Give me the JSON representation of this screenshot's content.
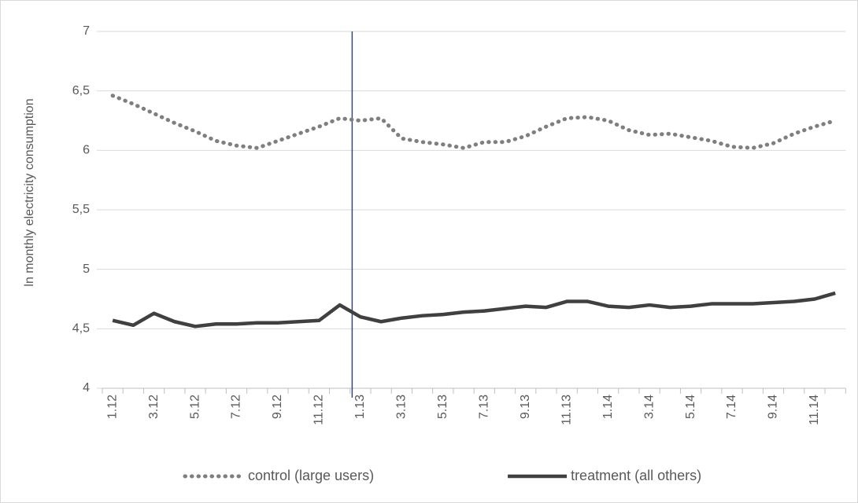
{
  "chart_data": {
    "type": "line",
    "y_label": "ln monthly electricity consumption",
    "categories": [
      "1.12",
      null,
      "3.12",
      null,
      "5.12",
      null,
      "7.12",
      null,
      "9.12",
      null,
      "11.12",
      null,
      "1.13",
      null,
      "3.13",
      null,
      "5.13",
      null,
      "7.13",
      null,
      "9.13",
      null,
      "11.13",
      null,
      "1.14",
      null,
      "3.14",
      null,
      "5.14",
      null,
      "7.14",
      null,
      "9.14",
      null,
      "11.14",
      null
    ],
    "series": [
      {
        "name": "control (large users)",
        "color": "#7f7f7f",
        "style": "dotted",
        "values": [
          6.46,
          6.39,
          6.31,
          6.23,
          6.16,
          6.08,
          6.04,
          6.02,
          6.08,
          6.14,
          6.2,
          6.27,
          6.25,
          6.27,
          6.1,
          6.07,
          6.05,
          6.02,
          6.07,
          6.07,
          6.12,
          6.2,
          6.27,
          6.28,
          6.25,
          6.17,
          6.13,
          6.14,
          6.11,
          6.08,
          6.03,
          6.02,
          6.06,
          6.14,
          6.2,
          6.25
        ]
      },
      {
        "name": "treatment (all others)",
        "color": "#404040",
        "style": "solid",
        "values": [
          4.57,
          4.53,
          4.63,
          4.56,
          4.52,
          4.54,
          4.54,
          4.55,
          4.55,
          4.56,
          4.57,
          4.7,
          4.6,
          4.56,
          4.59,
          4.61,
          4.62,
          4.64,
          4.65,
          4.67,
          4.69,
          4.68,
          4.73,
          4.73,
          4.69,
          4.68,
          4.7,
          4.68,
          4.69,
          4.71,
          4.71,
          4.71,
          4.72,
          4.73,
          4.75,
          4.8
        ]
      }
    ],
    "ylim": [
      4,
      7
    ],
    "yticks": [
      4,
      {
        "value": 4.5,
        "label": "4,5"
      },
      5,
      {
        "value": 5.5,
        "label": "5,5"
      },
      6,
      {
        "value": 6.5,
        "label": "6,5"
      },
      7
    ],
    "grid": true,
    "vline": {
      "at": "1.13",
      "color": "#2f4b8c"
    },
    "legend": "bottom"
  }
}
